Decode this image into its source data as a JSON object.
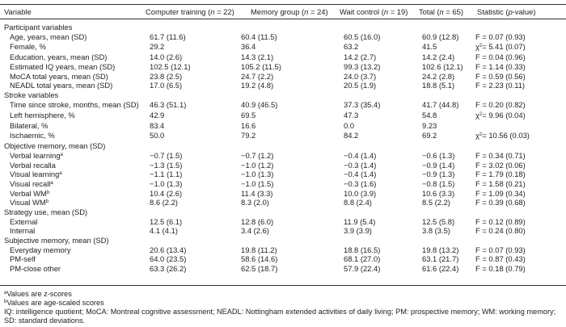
{
  "header": [
    {
      "pre": "Variable"
    },
    {
      "pre": "Computer training (",
      "n": "n",
      "post": " = 22)"
    },
    {
      "pre": "Memory group (",
      "n": "n",
      "post": " = 24)"
    },
    {
      "pre": "Wait control (",
      "n": "n",
      "post": " = 19)"
    },
    {
      "pre": "Total (",
      "n": "n",
      "post": " = 65)"
    },
    {
      "pre": "Statistic (",
      "n": "p",
      "post": "-value)"
    }
  ],
  "rows": [
    {
      "group": "Participant variables"
    },
    {
      "label": "Age, years, mean (SD)",
      "vals": [
        "61.7 (11.6)",
        "60.4 (11.5)",
        "60.5 (16.0)",
        "60.9 (12.8)"
      ],
      "stat": "F = 0.07 (0.93)"
    },
    {
      "label": "Female, %",
      "vals": [
        "29.2",
        "36.4",
        "63.2",
        "41.5"
      ],
      "chi": "χ",
      "chisup": "2",
      "stat": "= 5.41 (0.07)"
    },
    {
      "label": "Education, years, mean (SD)",
      "vals": [
        "14.0 (2.6)",
        "14.3 (2.1)",
        "14.2 (2.7)",
        "14.2 (2.4)"
      ],
      "stat": "F = 0.04 (0.96)"
    },
    {
      "label": "Estimated IQ years, mean (SD)",
      "vals": [
        "102.5 (12.1)",
        "105.2 (11.5)",
        "99.3 (13.2)",
        "102.6 (12.1)"
      ],
      "stat": "F = 1.14 (0.33)"
    },
    {
      "label": "MoCA total years, mean (SD)",
      "vals": [
        "23.8 (2.5)",
        "24.7 (2.2)",
        "24.0 (3.7)",
        "24.2 (2.8)"
      ],
      "stat": "F = 0.59 (0.56)"
    },
    {
      "label": "NEADL total years, mean (SD)",
      "vals": [
        "17.0 (6.5)",
        "19.2 (4.8)",
        "20.5 (1.9)",
        "18.8 (5.1)"
      ],
      "stat": "F = 2.23 (0.11)"
    },
    {
      "group": "Stroke variables"
    },
    {
      "label": "Time since stroke, months, mean (SD)",
      "vals": [
        "46.3 (51.1)",
        "40.9 (46.5)",
        "37.3 (35.4)",
        "41.7 (44.8)"
      ],
      "stat": "F = 0.20 (0.82)"
    },
    {
      "label": "Left hemisphere, %",
      "vals": [
        "42.9",
        "69.5",
        "47.3",
        "54.8"
      ],
      "chi": "χ",
      "chisup": "2",
      "stat": "= 9.96 (0.04)"
    },
    {
      "label": "Bilateral, %",
      "vals": [
        "83.4",
        "16.6",
        "0.0",
        "9.23"
      ],
      "stat": ""
    },
    {
      "label": "Ischaemic, %",
      "vals": [
        "50.0",
        "79.2",
        "84.2",
        "69.2"
      ],
      "chi": "χ",
      "chisup": "2",
      "stat": "= 10.56 (0.03)"
    },
    {
      "group": "Objective memory, mean (SD)"
    },
    {
      "label": "Verbal learning",
      "sup": "a",
      "vals": [
        "−0.7 (1.5)",
        "−0.7 (1.2)",
        "−0.4 (1.4)",
        "−0.6 (1.3)"
      ],
      "stat": "F = 0.34 (0.71)"
    },
    {
      "label": "Verbal recalla",
      "vals": [
        "−1.3 (1.5)",
        "−1.0 (1.2)",
        "−0.3 (1.4)",
        "−0.9 (1.4)"
      ],
      "stat": "F = 3.02 (0.06)"
    },
    {
      "label": "Visual learning",
      "sup": "a",
      "vals": [
        "−1.1 (1.1)",
        "−1.0 (1.3)",
        "−0.4 (1.4)",
        "−0.9 (1.3)"
      ],
      "stat": "F = 1.79 (0.18)"
    },
    {
      "label": "Visual recall",
      "sup": "a",
      "vals": [
        "−1.0 (1.3)",
        "−1.0 (1.5)",
        "−0.3 (1.6)",
        "−0.8 (1.5)"
      ],
      "stat": "F = 1.58 (0.21)"
    },
    {
      "label": "Verbal WM",
      "sup": "b",
      "vals": [
        "10.4 (2.6)",
        "11.4 (3.3)",
        "10.0 (3.9)",
        "10.6 (3.3)"
      ],
      "stat": "F = 1.09 (0.34)"
    },
    {
      "label": "Visual WM",
      "sup": "b",
      "vals": [
        "8.6 (2.2)",
        "8.3 (2.0)",
        "8.8 (2.4)",
        "8.5 (2.2)"
      ],
      "stat": "F = 0.39 (0.68)"
    },
    {
      "group": "Strategy use, mean (SD)"
    },
    {
      "label": "External",
      "vals": [
        "12.5 (6.1)",
        "12.8 (6.0)",
        "11.9 (5.4)",
        "12.5 (5.8)"
      ],
      "stat": "F = 0.12 (0.89)"
    },
    {
      "label": "Internal",
      "vals": [
        "4.1 (4.1)",
        "3.4 (2.6)",
        "3.9 (3.9)",
        "3.8 (3.5)"
      ],
      "stat": "F = 0.24 (0.80)"
    },
    {
      "group": "Subjective memory, mean (SD)"
    },
    {
      "label": "Everyday memory",
      "vals": [
        "20.6 (13.4)",
        "19.8 (11.2)",
        "18.8 (16.5)",
        "19.8 (13.2)"
      ],
      "stat": "F = 0.07 (0.93)"
    },
    {
      "label": "PM-self",
      "vals": [
        "64.0 (23.5)",
        "58.6 (14.6)",
        "68.1 (27.0)",
        "63.1 (21.7)"
      ],
      "stat": "F =  0.87 (0.43)"
    },
    {
      "label": "PM-close other",
      "vals": [
        "63.3 (26.2)",
        "62.5 (18.7)",
        "57.9 (22.4)",
        "61.6 (22.4)"
      ],
      "stat": "F = 0.18 (0.79)"
    }
  ],
  "footnotes": [
    {
      "sup": "a",
      "text": "Values are z-scores"
    },
    {
      "sup": "b",
      "text": "Values are age-scaled scores"
    },
    {
      "text": "IQ: intelligence quotient; MoCA: Montreal cognitive assessment; NEADL: Nottingham extended activities of daily living; PM: prospective memory; WM: working memory; SD: standard deviations."
    }
  ]
}
